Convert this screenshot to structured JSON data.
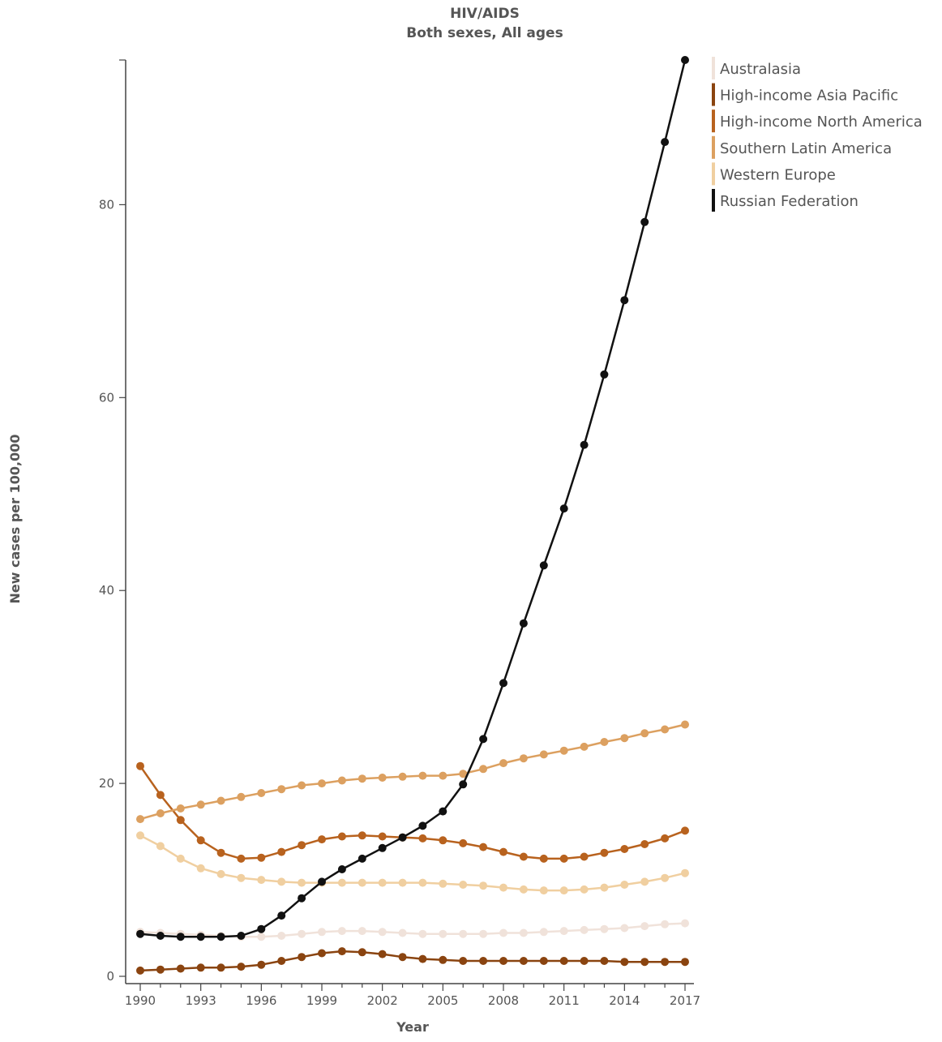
{
  "chart_data": {
    "type": "line",
    "title": "HIV/AIDS",
    "subtitle": "Both sexes, All ages",
    "xlabel": "Year",
    "ylabel": "New cases per 100,000",
    "x": [
      1990,
      1991,
      1992,
      1993,
      1994,
      1995,
      1996,
      1997,
      1998,
      1999,
      2000,
      2001,
      2002,
      2003,
      2004,
      2005,
      2006,
      2007,
      2008,
      2009,
      2010,
      2011,
      2012,
      2013,
      2014,
      2015,
      2016,
      2017
    ],
    "x_ticks": [
      1990,
      1993,
      1996,
      1999,
      2002,
      2005,
      2008,
      2011,
      2014,
      2017
    ],
    "x_tick_labels": [
      "1990",
      "1993",
      "1996",
      "1999",
      "2002",
      "2005",
      "2008",
      "2011",
      "2014",
      "2017"
    ],
    "xlim": [
      1990,
      2017
    ],
    "y_ticks": [
      0,
      20,
      40,
      60,
      80
    ],
    "y_tick_labels": [
      "0",
      "20",
      "40",
      "60",
      "80"
    ],
    "ylim": [
      0,
      95
    ],
    "grid": false,
    "legend_position": "top-right",
    "series": [
      {
        "name": "Australasia",
        "color": "#f0e2da",
        "values": [
          4.6,
          4.5,
          4.4,
          4.3,
          4.2,
          4.1,
          4.1,
          4.2,
          4.4,
          4.6,
          4.7,
          4.7,
          4.6,
          4.5,
          4.4,
          4.4,
          4.4,
          4.4,
          4.5,
          4.5,
          4.6,
          4.7,
          4.8,
          4.9,
          5.0,
          5.2,
          5.4,
          5.5
        ]
      },
      {
        "name": "High-income Asia Pacific",
        "color": "#8a4410",
        "values": [
          0.6,
          0.7,
          0.8,
          0.9,
          0.9,
          1.0,
          1.2,
          1.6,
          2.0,
          2.4,
          2.6,
          2.5,
          2.3,
          2.0,
          1.8,
          1.7,
          1.6,
          1.6,
          1.6,
          1.6,
          1.6,
          1.6,
          1.6,
          1.6,
          1.5,
          1.5,
          1.5,
          1.5
        ]
      },
      {
        "name": "High-income North America",
        "color": "#b8621e",
        "values": [
          21.8,
          18.8,
          16.2,
          14.1,
          12.8,
          12.2,
          12.3,
          12.9,
          13.6,
          14.2,
          14.5,
          14.6,
          14.5,
          14.4,
          14.3,
          14.1,
          13.8,
          13.4,
          12.9,
          12.4,
          12.2,
          12.2,
          12.4,
          12.8,
          13.2,
          13.7,
          14.3,
          15.1
        ]
      },
      {
        "name": "Southern Latin America",
        "color": "#dca060",
        "values": [
          16.3,
          16.9,
          17.4,
          17.8,
          18.2,
          18.6,
          19.0,
          19.4,
          19.8,
          20.0,
          20.3,
          20.5,
          20.6,
          20.7,
          20.8,
          20.8,
          21.0,
          21.5,
          22.1,
          22.6,
          23.0,
          23.4,
          23.8,
          24.3,
          24.7,
          25.2,
          25.6,
          26.1
        ]
      },
      {
        "name": "Western Europe",
        "color": "#f0cfa0",
        "values": [
          14.6,
          13.5,
          12.2,
          11.2,
          10.6,
          10.2,
          10.0,
          9.8,
          9.7,
          9.7,
          9.7,
          9.7,
          9.7,
          9.7,
          9.7,
          9.6,
          9.5,
          9.4,
          9.2,
          9.0,
          8.9,
          8.9,
          9.0,
          9.2,
          9.5,
          9.8,
          10.2,
          10.7
        ]
      },
      {
        "name": "Russian Federation",
        "color": "#111111",
        "values": [
          4.4,
          4.2,
          4.1,
          4.1,
          4.1,
          4.2,
          4.9,
          6.3,
          8.1,
          9.8,
          11.1,
          12.2,
          13.3,
          14.4,
          15.6,
          17.1,
          19.9,
          24.6,
          30.4,
          36.6,
          42.6,
          48.5,
          55.1,
          62.4,
          70.1,
          78.2,
          86.5,
          95.0
        ]
      }
    ]
  }
}
